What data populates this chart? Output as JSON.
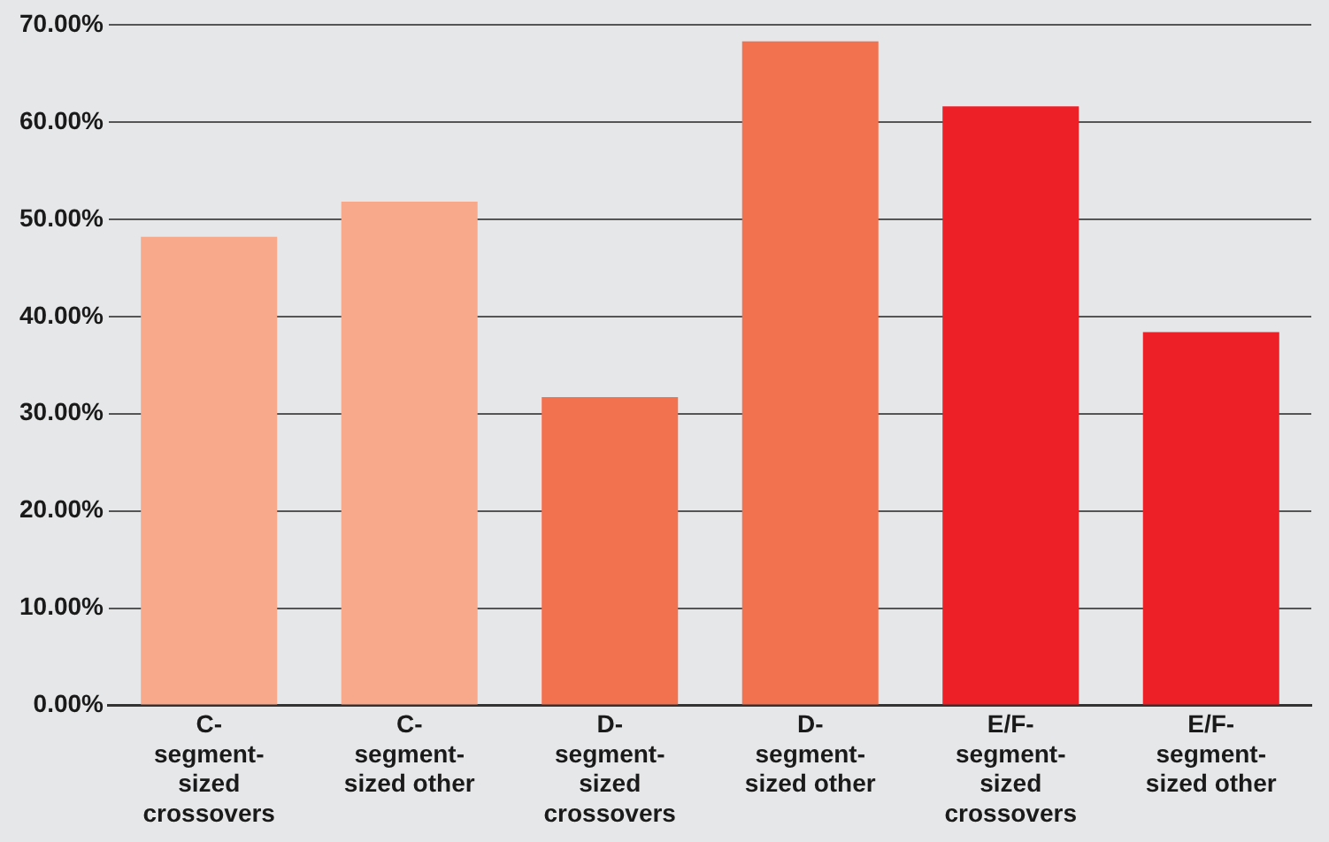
{
  "chart_data": {
    "type": "bar",
    "categories": [
      "C-segment-sized crossovers",
      "C-segment-sized other",
      "D-segment-sized crossovers",
      "D-segment-sized other",
      "E/F-segment-sized crossovers",
      "E/F-segment-sized other"
    ],
    "values": [
      48.2,
      51.8,
      31.7,
      68.3,
      61.6,
      38.4
    ],
    "colors": [
      "#f9a98b",
      "#f9a98b",
      "#f2714f",
      "#f2714f",
      "#ee2027",
      "#ee2027"
    ],
    "ylim": [
      0,
      70
    ],
    "yticks": [
      {
        "value": 0,
        "label": "0.00%"
      },
      {
        "value": 10,
        "label": "10.00%"
      },
      {
        "value": 20,
        "label": "20.00%"
      },
      {
        "value": 30,
        "label": "30.00%"
      },
      {
        "value": 40,
        "label": "40.00%"
      },
      {
        "value": 50,
        "label": "50.00%"
      },
      {
        "value": 60,
        "label": "60.00%"
      },
      {
        "value": 70,
        "label": "70.00%"
      }
    ],
    "grid": "y"
  }
}
